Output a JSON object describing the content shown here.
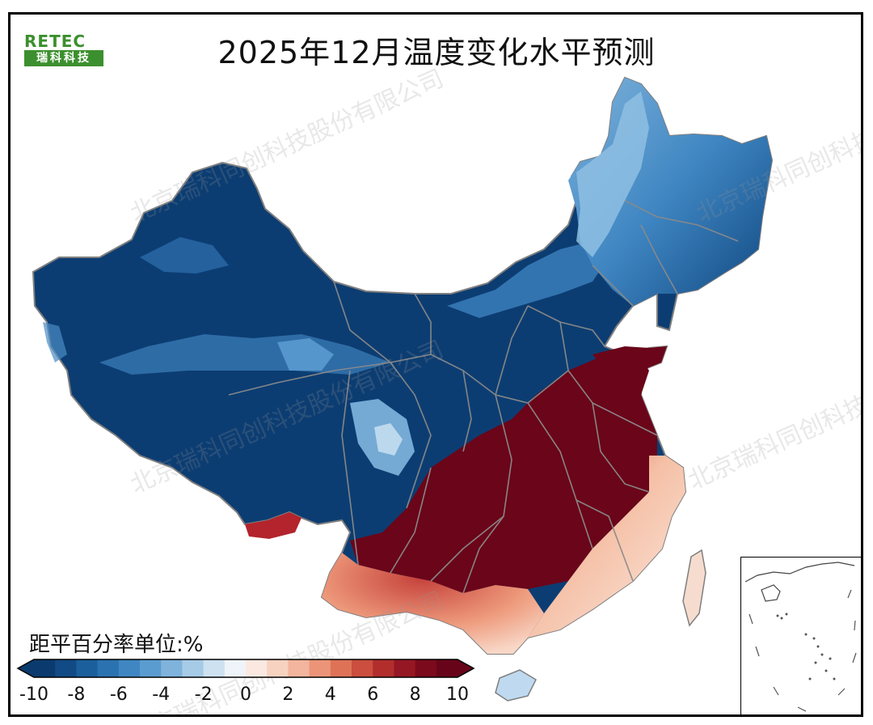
{
  "title": "2025年12月温度变化水平预测",
  "logo": {
    "brand": "RETEC",
    "name": "瑞科科技"
  },
  "legend": {
    "unit_label": "距平百分率单位:%",
    "ticks": [
      "-10",
      "-8",
      "-6",
      "-4",
      "-2",
      "0",
      "2",
      "4",
      "6",
      "8",
      "10"
    ],
    "colors": [
      "#0b3b6e",
      "#114a84",
      "#1b5f9c",
      "#2a72b0",
      "#3f86c2",
      "#5b9cd0",
      "#7fb3dc",
      "#a6cbe6",
      "#cde1f1",
      "#eef4f9",
      "#fbe9e1",
      "#f8d2c1",
      "#f3b59d",
      "#ec9478",
      "#de7257",
      "#cb4e3e",
      "#b22e2d",
      "#961724",
      "#7a0a1c",
      "#68041a"
    ]
  },
  "watermark": "北京瑞科同创科技股份有限公司",
  "colors": {
    "cold": "#0b3b6e",
    "warm": "#6b0519",
    "border": "#7f7f7f"
  }
}
